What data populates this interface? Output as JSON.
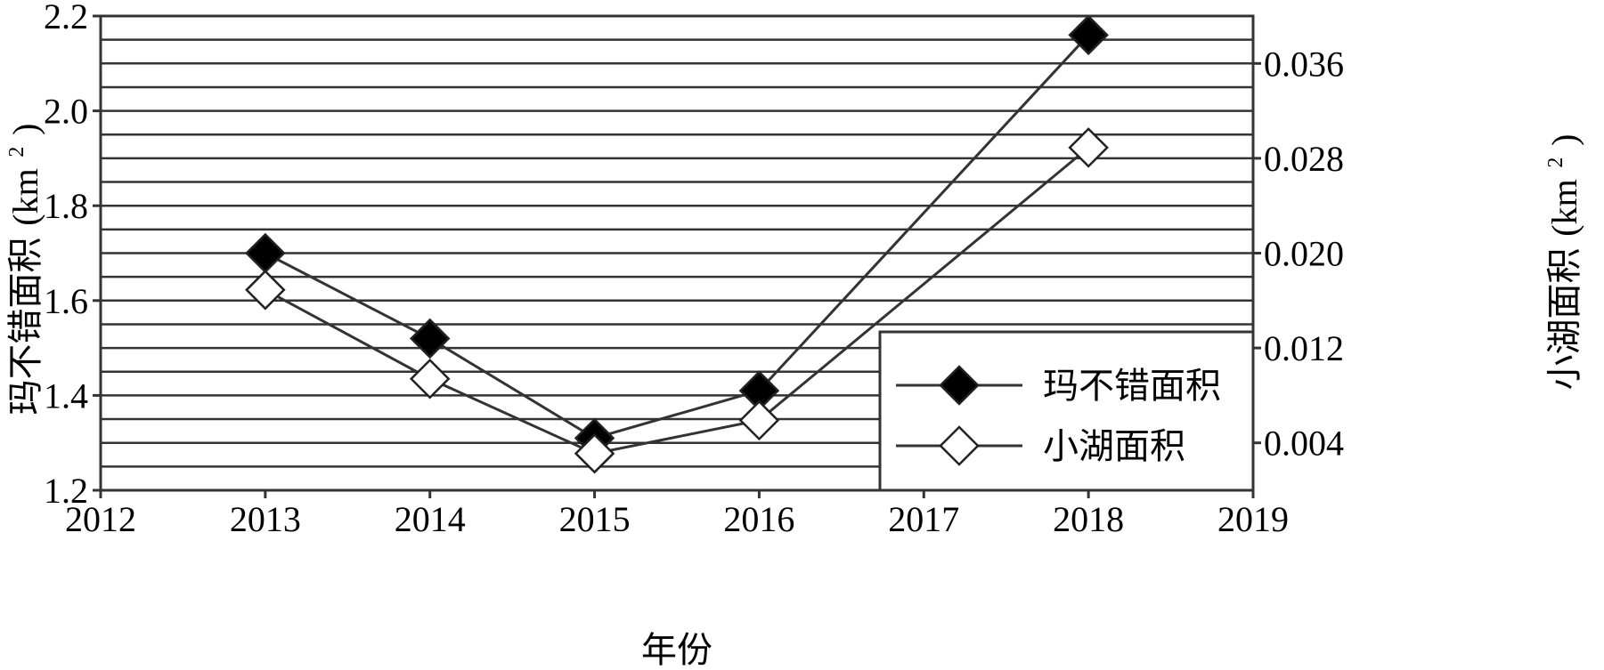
{
  "chart_data": {
    "type": "line",
    "title": "",
    "xlabel": "年份",
    "ylabel_left": {
      "text": "玛不错面积",
      "unit_prefix": "(km",
      "unit_sup": "2",
      "unit_suffix": ")"
    },
    "ylabel_right": {
      "text": "小湖面积",
      "unit_prefix": "(km",
      "unit_sup": "2",
      "unit_suffix": ")"
    },
    "xlim": [
      2012,
      2019
    ],
    "x_ticks": [
      "2012",
      "2013",
      "2014",
      "2015",
      "2016",
      "2017",
      "2018",
      "2019"
    ],
    "ylim_left": [
      1.2,
      2.2
    ],
    "y_ticks_left": [
      "1.2",
      "1.4",
      "1.6",
      "1.8",
      "2.0",
      "2.2"
    ],
    "ylim_right": [
      0,
      0.04
    ],
    "y_ticks_right": [
      "0.004",
      "0.012",
      "0.020",
      "0.028",
      "0.036"
    ],
    "grid": "horizontal",
    "legend_position": "bottom-right",
    "series": [
      {
        "name": "玛不错面积",
        "axis": "left",
        "marker": "filled-diamond",
        "color": "#000000",
        "x": [
          2013,
          2014,
          2015,
          2016,
          2018
        ],
        "y": [
          1.7,
          1.52,
          1.31,
          1.41,
          2.16
        ]
      },
      {
        "name": "小湖面积",
        "axis": "right",
        "marker": "hollow-diamond",
        "color": "#000000",
        "x": [
          2013,
          2014,
          2015,
          2016,
          2018
        ],
        "y": [
          0.0169,
          0.0094,
          0.0031,
          0.0059,
          0.0289
        ]
      }
    ]
  }
}
